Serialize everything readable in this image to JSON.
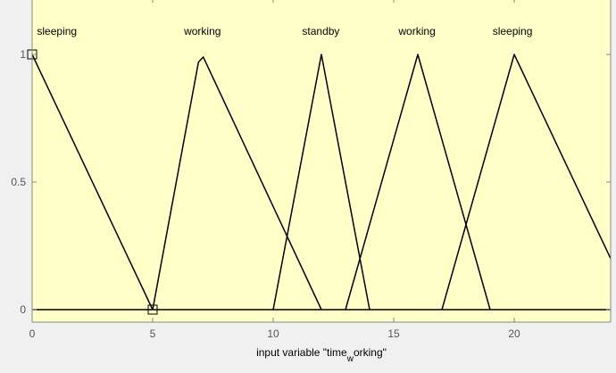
{
  "chart_data": {
    "type": "line",
    "title": "",
    "xlabel_main": "input variable \"time",
    "xlabel_sub": "w",
    "xlabel_tail": "orking\"",
    "xlim": [
      0,
      24
    ],
    "ylim": [
      0,
      1
    ],
    "xticks": [
      0,
      5,
      10,
      15,
      20
    ],
    "yticks": [
      0,
      0.5,
      1
    ],
    "ytick_labels": [
      "0",
      "0.5",
      "1"
    ],
    "grid": false,
    "colors": {
      "plot_bg": "#ffffc8",
      "line": "#000000",
      "page_bg": "#f0f0f0",
      "axis": "#888888"
    },
    "series": [
      {
        "label": "sleeping",
        "label_x": 0.2,
        "points": [
          [
            -5,
            1
          ],
          [
            0,
            1
          ],
          [
            5,
            0
          ]
        ]
      },
      {
        "label": "working",
        "label_x": 6.3,
        "points": [
          [
            5,
            0
          ],
          [
            6.9,
            0.97
          ],
          [
            7.1,
            0.99
          ],
          [
            12,
            0
          ]
        ]
      },
      {
        "label": "standby",
        "label_x": 11.2,
        "points": [
          [
            10,
            0
          ],
          [
            12,
            1
          ],
          [
            14,
            0
          ]
        ]
      },
      {
        "label": "working",
        "label_x": 15.2,
        "points": [
          [
            13,
            0
          ],
          [
            16,
            1
          ],
          [
            19,
            0
          ]
        ]
      },
      {
        "label": "sleeping",
        "label_x": 19.1,
        "points": [
          [
            17,
            0
          ],
          [
            20,
            1
          ],
          [
            25,
            0
          ]
        ]
      }
    ],
    "markers": [
      [
        0,
        1
      ],
      [
        5,
        0
      ]
    ]
  }
}
